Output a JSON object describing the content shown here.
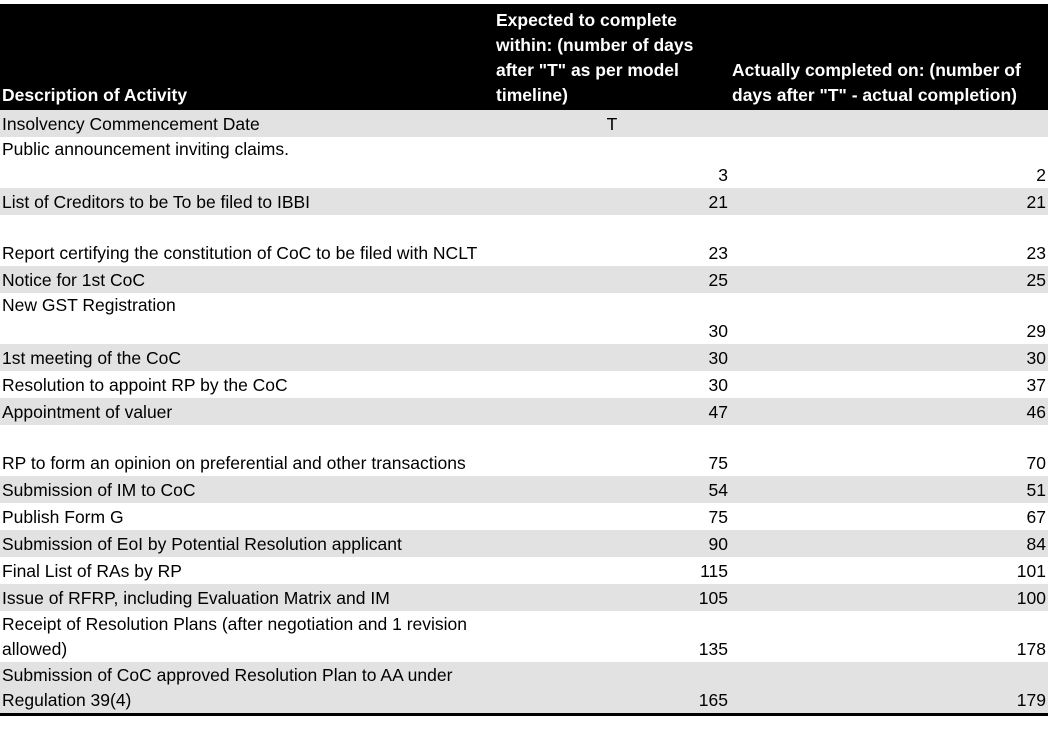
{
  "table": {
    "headers": {
      "col1": "Description of Activity",
      "col2": "Expected to complete within: (number of days after \"T\" as per model timeline)",
      "col3": "Actually completed on: (number of days after \"T\" - actual completion)"
    },
    "rows": [
      {
        "activity": "Insolvency Commencement Date",
        "expected": "T",
        "actual": ""
      },
      {
        "activity": "Public announcement inviting claims.",
        "expected": "3",
        "actual": "2"
      },
      {
        "activity": "List of Creditors to be To be filed to IBBI",
        "expected": "21",
        "actual": "21"
      },
      {
        "activity": "Report certifying the constitution of CoC to be filed with NCLT",
        "expected": "23",
        "actual": "23"
      },
      {
        "activity": "Notice for 1st CoC",
        "expected": "25",
        "actual": "25"
      },
      {
        "activity": "New GST Registration",
        "expected": "30",
        "actual": "29"
      },
      {
        "activity": "1st meeting of the CoC",
        "expected": "30",
        "actual": "30"
      },
      {
        "activity": "Resolution to appoint RP by the CoC",
        "expected": "30",
        "actual": "37"
      },
      {
        "activity": "Appointment of valuer",
        "expected": "47",
        "actual": "46"
      },
      {
        "activity": "RP to form an opinion on preferential and other transactions",
        "expected": "75",
        "actual": "70"
      },
      {
        "activity": "Submission of IM to CoC",
        "expected": "54",
        "actual": "51"
      },
      {
        "activity": "Publish Form G",
        "expected": "75",
        "actual": "67"
      },
      {
        "activity": "Submission of EoI by Potential Resolution applicant",
        "expected": "90",
        "actual": "84"
      },
      {
        "activity": "Final List of RAs by RP",
        "expected": "115",
        "actual": "101"
      },
      {
        "activity": "Issue of RFRP, including Evaluation Matrix and IM",
        "expected": "105",
        "actual": "100"
      },
      {
        "activity": "Receipt of Resolution Plans (after negotiation and 1 revision allowed)",
        "expected": "135",
        "actual": "178"
      },
      {
        "activity": "Submission of CoC approved Resolution Plan to AA under Regulation 39(4)",
        "expected": "165",
        "actual": "179"
      }
    ]
  },
  "colors": {
    "header_bg": "#000000",
    "header_text": "#ffffff",
    "shade": "#e2e2e2"
  }
}
